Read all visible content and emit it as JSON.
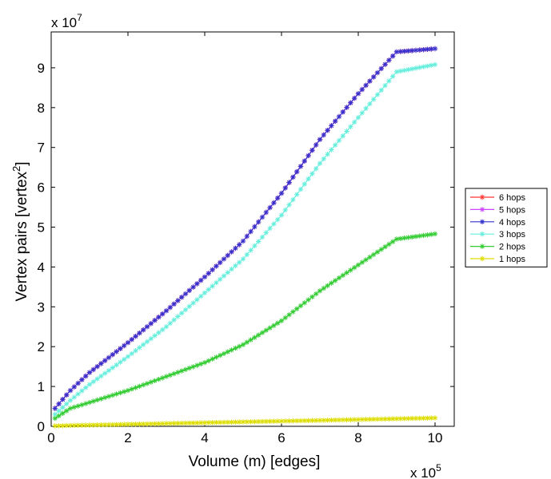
{
  "chart_data": {
    "type": "line",
    "title": "",
    "xlabel": "Volume (m) [edges]",
    "ylabel_main": "Vertex pairs [vertex",
    "ylabel_sup": "2",
    "ylabel_end": "]",
    "x_multiplier_label": "x 10",
    "x_multiplier_exp": "5",
    "y_multiplier_label": "x 10",
    "y_multiplier_exp": "7",
    "xlim": [
      0,
      10.5
    ],
    "ylim": [
      0,
      9.9
    ],
    "x_ticks": [
      0,
      2,
      4,
      6,
      8,
      10
    ],
    "y_ticks": [
      0,
      1,
      2,
      3,
      4,
      5,
      6,
      7,
      8,
      9
    ],
    "x_tick_labels": [
      "0",
      "2",
      "4",
      "6",
      "8",
      "10"
    ],
    "y_tick_labels": [
      "0",
      "1",
      "2",
      "3",
      "4",
      "5",
      "6",
      "7",
      "8",
      "9"
    ],
    "legend_position": "right, outside",
    "series": [
      {
        "name": "6 hops",
        "color": "#ff3333",
        "x": [
          0.1,
          0.5,
          1,
          2,
          3,
          4,
          5,
          6,
          7,
          8,
          9,
          10
        ],
        "y": [
          0.45,
          0.9,
          1.35,
          2.1,
          2.9,
          3.75,
          4.65,
          5.85,
          7.2,
          8.35,
          9.4,
          9.48
        ]
      },
      {
        "name": "5 hops",
        "color": "#cc44ff",
        "x": [
          0.1,
          0.5,
          1,
          2,
          3,
          4,
          5,
          6,
          7,
          8,
          9,
          10
        ],
        "y": [
          0.45,
          0.9,
          1.35,
          2.1,
          2.9,
          3.75,
          4.65,
          5.85,
          7.2,
          8.35,
          9.4,
          9.48
        ]
      },
      {
        "name": "4 hops",
        "color": "#3333cc",
        "x": [
          0.1,
          0.5,
          1,
          2,
          3,
          4,
          5,
          6,
          7,
          8,
          9,
          10
        ],
        "y": [
          0.45,
          0.9,
          1.35,
          2.1,
          2.9,
          3.75,
          4.65,
          5.85,
          7.2,
          8.35,
          9.4,
          9.48
        ]
      },
      {
        "name": "3 hops",
        "color": "#66eedd",
        "x": [
          0.1,
          0.5,
          1,
          2,
          3,
          4,
          5,
          6,
          7,
          8,
          9,
          10
        ],
        "y": [
          0.3,
          0.65,
          1.05,
          1.75,
          2.5,
          3.35,
          4.2,
          5.3,
          6.6,
          7.75,
          8.9,
          9.08
        ]
      },
      {
        "name": "2 hops",
        "color": "#33cc33",
        "x": [
          0.1,
          0.5,
          1,
          2,
          3,
          4,
          5,
          6,
          7,
          8,
          9,
          10
        ],
        "y": [
          0.2,
          0.45,
          0.6,
          0.9,
          1.25,
          1.6,
          2.05,
          2.65,
          3.4,
          4.05,
          4.7,
          4.83
        ]
      },
      {
        "name": "1 hops",
        "color": "#dddd00",
        "x": [
          0.1,
          0.5,
          1,
          2,
          3,
          4,
          5,
          6,
          7,
          8,
          9,
          10
        ],
        "y": [
          0.01,
          0.02,
          0.03,
          0.05,
          0.07,
          0.09,
          0.11,
          0.13,
          0.15,
          0.17,
          0.19,
          0.21
        ]
      }
    ]
  }
}
